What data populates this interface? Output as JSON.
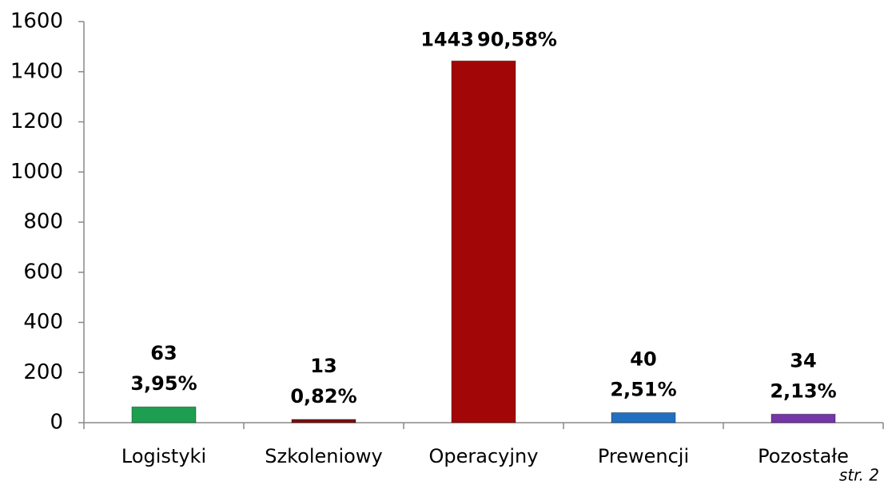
{
  "chart_data": {
    "type": "bar",
    "categories": [
      "Logistyki",
      "Szkoleniowy",
      "Operacyjny",
      "Prewencji",
      "Pozostałe"
    ],
    "values": [
      63,
      13,
      1443,
      40,
      34
    ],
    "percent_labels": [
      "3,95%",
      "0,82%",
      "90,58%",
      "2,51%",
      "2,13%"
    ],
    "colors": [
      "#1e9e50",
      "#7a1010",
      "#a30606",
      "#2170c0",
      "#7536a8"
    ],
    "ylim": [
      0,
      1600
    ],
    "yticks": [
      0,
      200,
      400,
      600,
      800,
      1000,
      1200,
      1400,
      1600
    ],
    "grid": false,
    "footer": "str. 2"
  }
}
